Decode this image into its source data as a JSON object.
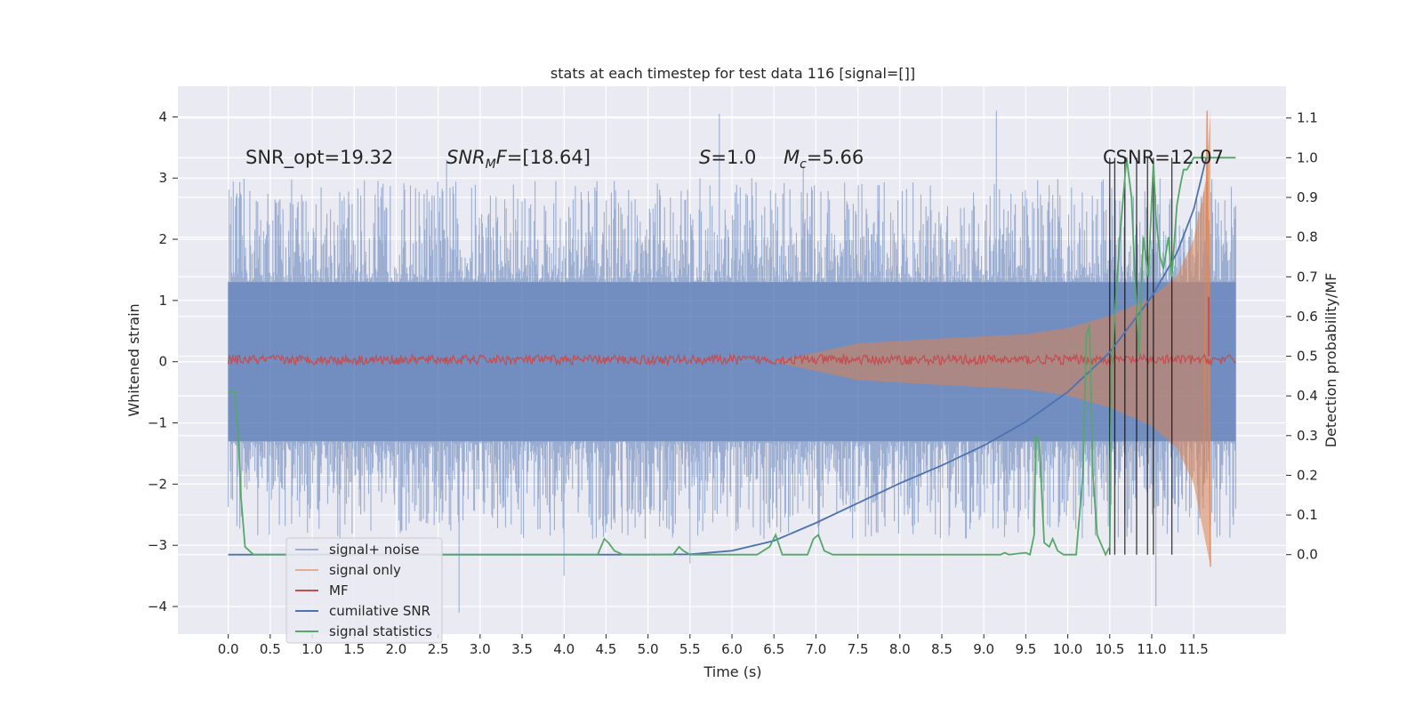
{
  "chart_data": {
    "type": "line",
    "title": "stats at each timestep for test data 116 [signal=[]]",
    "xlabel": "Time (s)",
    "ylabel": "Whitened strain",
    "y2label": "Detection probability/MF",
    "xlim": [
      -0.6,
      12.6
    ],
    "ylim": [
      -4.45,
      4.5
    ],
    "y2lim": [
      -0.2,
      1.18
    ],
    "x_ticks": [
      "0.0",
      "0.5",
      "1.0",
      "1.5",
      "2.0",
      "2.5",
      "3.0",
      "3.5",
      "4.0",
      "4.5",
      "5.0",
      "5.5",
      "6.0",
      "6.5",
      "7.0",
      "7.5",
      "8.0",
      "8.5",
      "9.0",
      "9.5",
      "10.0",
      "10.5",
      "11.0",
      "11.5"
    ],
    "y_ticks": [
      "4",
      "3",
      "2",
      "1",
      "0",
      "−1",
      "−2",
      "−3",
      "−4"
    ],
    "y2_ticks": [
      "1.1",
      "1.0",
      "0.9",
      "0.8",
      "0.7",
      "0.6",
      "0.5",
      "0.4",
      "0.3",
      "0.2",
      "0.1",
      "0.0"
    ],
    "grid": true,
    "legend_position": "lower-left",
    "annotations": {
      "snr_opt": "SNR_opt=19.32",
      "snr_mf": "=[18.64]",
      "snr_mf_sym": "SNR",
      "snr_mf_sub": "M",
      "snr_mf_sym2": "F",
      "s_sym": "S",
      "s_val": "=1.0",
      "mc_sym": "M",
      "mc_sub": "c",
      "mc_val": "=5.66",
      "csnr": "CSNR=12.07"
    },
    "series": [
      {
        "name": "signal+ noise",
        "color": "#4c72b0",
        "noise_band": [
          -1.3,
          1.3
        ],
        "peak_range": [
          -4.1,
          4.1
        ]
      },
      {
        "name": "signal only",
        "color": "#dd8452",
        "envelope_t": [
          6.5,
          7.5,
          8.5,
          9.5,
          10.0,
          10.5,
          11.0,
          11.3,
          11.5,
          11.65,
          11.7
        ],
        "envelope_amp": [
          0.0,
          0.3,
          0.38,
          0.45,
          0.55,
          0.75,
          1.05,
          1.4,
          2.0,
          3.0,
          4.1
        ]
      },
      {
        "name": "MF",
        "color": "#c44e52",
        "spike": {
          "t": 11.68,
          "y2": 0.65
        }
      },
      {
        "name": "cumilative SNR",
        "color": "#4c72b0",
        "x": [
          0.0,
          5.0,
          5.5,
          6.0,
          6.5,
          7.0,
          7.5,
          8.0,
          8.5,
          9.0,
          9.5,
          10.0,
          10.5,
          11.0,
          11.3,
          11.5,
          11.65
        ],
        "y2": [
          0.0,
          0.0,
          0.001,
          0.01,
          0.035,
          0.08,
          0.13,
          0.18,
          0.225,
          0.275,
          0.335,
          0.41,
          0.51,
          0.65,
          0.76,
          0.87,
          1.0
        ]
      },
      {
        "name": "signal statistics",
        "color": "#55a868",
        "x": [
          0.0,
          0.08,
          0.12,
          0.15,
          0.2,
          0.3,
          4.4,
          4.48,
          4.53,
          4.6,
          4.7,
          5.3,
          5.37,
          5.42,
          5.5,
          6.3,
          6.45,
          6.52,
          6.6,
          6.9,
          6.97,
          7.03,
          7.1,
          7.2,
          9.2,
          9.25,
          9.3,
          9.5,
          9.55,
          9.6,
          9.62,
          9.66,
          9.72,
          9.78,
          9.82,
          9.88,
          9.95,
          10.1,
          10.18,
          10.22,
          10.26,
          10.3,
          10.35,
          10.45,
          10.5,
          10.52,
          10.56,
          10.62,
          10.7,
          10.76,
          10.8,
          10.85,
          10.9,
          10.96,
          11.02,
          11.05,
          11.1,
          11.14,
          11.2,
          11.24,
          11.3,
          11.34,
          11.38,
          11.42,
          11.5,
          11.6,
          11.7,
          12.0
        ],
        "y2": [
          0.41,
          0.41,
          0.3,
          0.15,
          0.02,
          0.0,
          0.0,
          0.04,
          0.03,
          0.01,
          0.0,
          0.0,
          0.02,
          0.01,
          0.0,
          0.0,
          0.02,
          0.05,
          0.0,
          0.0,
          0.04,
          0.05,
          0.01,
          0.0,
          0.0,
          0.005,
          0.0,
          0.005,
          0.0,
          0.05,
          0.3,
          0.28,
          0.03,
          0.02,
          0.04,
          0.01,
          0.0,
          0.0,
          0.2,
          0.55,
          0.58,
          0.2,
          0.05,
          0.0,
          0.02,
          0.46,
          0.6,
          0.8,
          1.0,
          0.9,
          0.7,
          0.5,
          0.8,
          0.7,
          0.99,
          0.85,
          0.75,
          0.72,
          0.8,
          0.7,
          0.88,
          0.93,
          0.97,
          0.97,
          1.0,
          1.0,
          1.0,
          1.0
        ]
      },
      {
        "name": "detections",
        "color": "#000000",
        "x": [
          10.5,
          10.56,
          10.68,
          10.82,
          10.95,
          11.02,
          11.24
        ]
      }
    ]
  },
  "legend": [
    {
      "label": "signal+ noise",
      "color": "#4c72b0",
      "alpha": 0.5
    },
    {
      "label": "signal only",
      "color": "#dd8452",
      "alpha": 0.6
    },
    {
      "label": "MF",
      "color": "#c44e52",
      "alpha": 1.0
    },
    {
      "label": "cumilative SNR",
      "color": "#4c72b0",
      "alpha": 1.0
    },
    {
      "label": "signal statistics",
      "color": "#55a868",
      "alpha": 1.0
    }
  ]
}
